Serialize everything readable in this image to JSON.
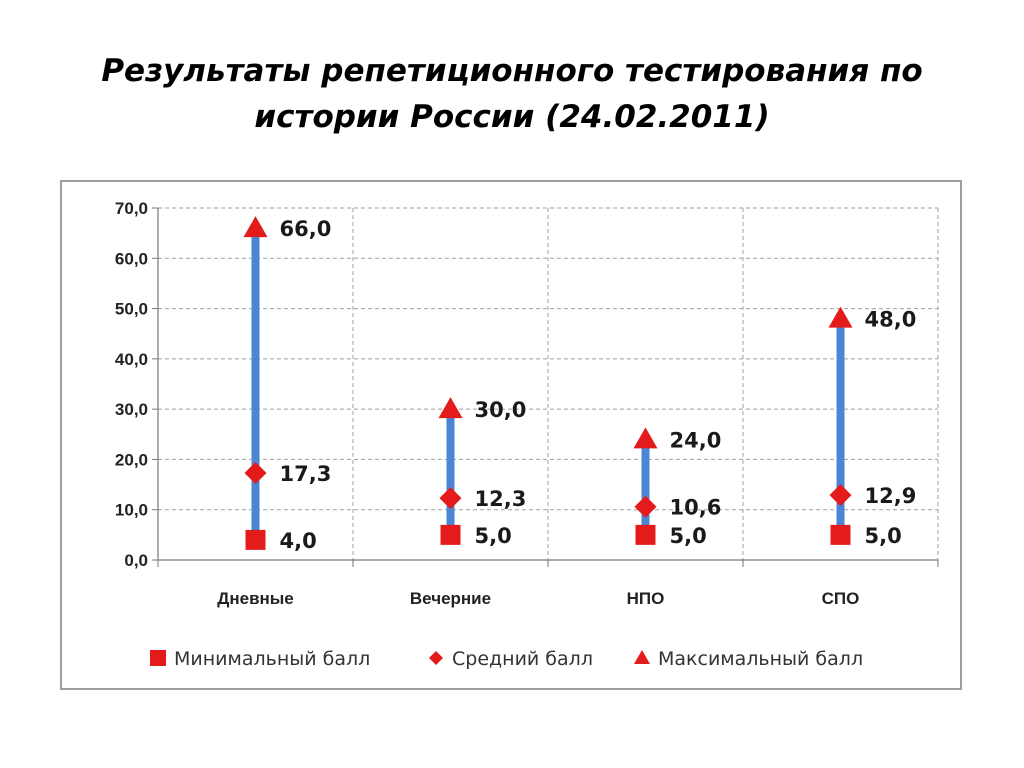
{
  "slide": {
    "title_line1": "Результаты репетиционного тестирования по",
    "title_line2": "истории России (24.02.2011)"
  },
  "chart_data": {
    "type": "line",
    "title": "",
    "xlabel": "",
    "ylabel": "",
    "ylim": [
      0,
      70
    ],
    "yticks": [
      "0,0",
      "10,0",
      "20,0",
      "30,0",
      "40,0",
      "50,0",
      "60,0",
      "70,0"
    ],
    "grid": true,
    "legend": "bottom",
    "categories": [
      "Дневные",
      "Вечерние",
      "НПО",
      "СПО"
    ],
    "series": [
      {
        "name": "Минимальный балл",
        "marker": "square",
        "color": "#e31b1b",
        "values": [
          4.0,
          5.0,
          5.0,
          5.0
        ],
        "labels": [
          "4,0",
          "5,0",
          "5,0",
          "5,0"
        ]
      },
      {
        "name": "Средний балл",
        "marker": "diamond",
        "color": "#e31b1b",
        "values": [
          17.3,
          12.3,
          10.6,
          12.9
        ],
        "labels": [
          "17,3",
          "12,3",
          "10,6",
          "12,9"
        ]
      },
      {
        "name": "Максимальный балл",
        "marker": "triangle",
        "color": "#e31b1b",
        "values": [
          66.0,
          30.0,
          24.0,
          48.0
        ],
        "labels": [
          "66,0",
          "30,0",
          "24,0",
          "48,0"
        ]
      }
    ],
    "range_bar_color": "#4a86d4",
    "grid_color": "#a0a0a0"
  }
}
